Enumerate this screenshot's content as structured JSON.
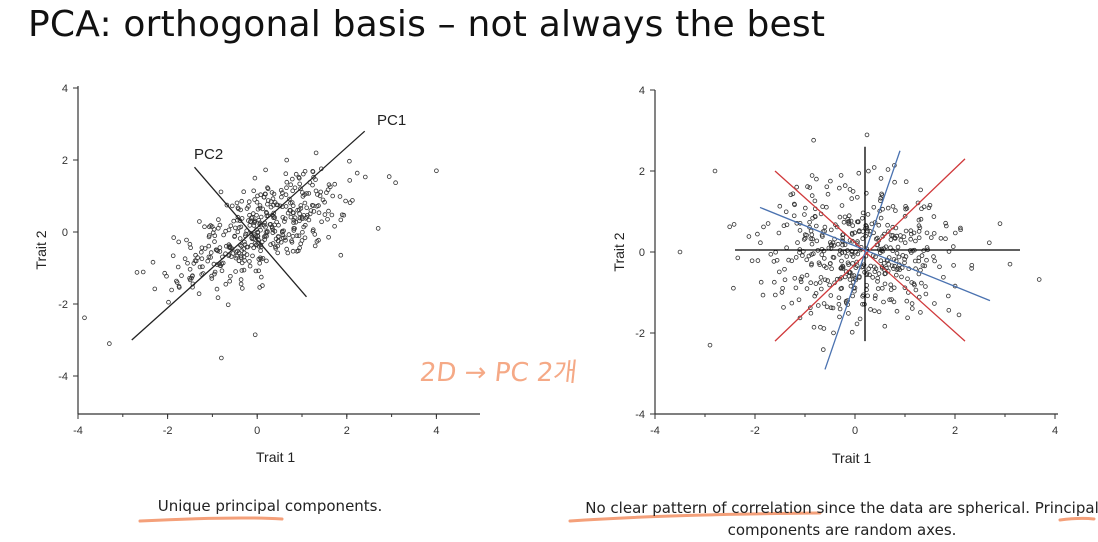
{
  "title": "PCA: orthogonal basis – not always the best",
  "handwritten_note": "2D → PC 2개",
  "captions": {
    "left": "Unique principal components.",
    "right": "No clear pattern of correlation since the data are spherical. Principal components are random axes."
  },
  "chart_data": [
    {
      "type": "scatter",
      "xlabel": "Trait 1",
      "ylabel": "Trait 2",
      "xlim": [
        -4,
        5
      ],
      "ylim": [
        -5,
        4
      ],
      "xticks": [
        -4,
        -2,
        0,
        2,
        4
      ],
      "yticks": [
        4,
        2,
        0,
        -2,
        -4
      ],
      "annotations": [
        {
          "label": "PC1",
          "from": [
            -2.8,
            -3.0
          ],
          "to": [
            2.4,
            2.8
          ]
        },
        {
          "label": "PC2",
          "from": [
            -1.4,
            1.8
          ],
          "to": [
            1.1,
            -1.8
          ]
        }
      ],
      "points": "correlated cloud, roughly 450 points along y ≈ 0.9x"
    },
    {
      "type": "scatter",
      "xlabel": "Trait 1",
      "ylabel": "Trait 2",
      "xlim": [
        -4,
        4
      ],
      "ylim": [
        -4,
        4
      ],
      "xticks": [
        -4,
        -2,
        0,
        2,
        4
      ],
      "yticks": [
        4,
        2,
        0,
        -2,
        -4
      ],
      "axes_lines": [
        {
          "color": "#000000",
          "from": [
            -2.4,
            0.05
          ],
          "to": [
            3.3,
            0.05
          ]
        },
        {
          "color": "#000000",
          "from": [
            0.2,
            -2.2
          ],
          "to": [
            0.2,
            2.6
          ]
        },
        {
          "color": "#d0393b",
          "from": [
            -1.6,
            -2.2
          ],
          "to": [
            2.2,
            2.3
          ]
        },
        {
          "color": "#d0393b",
          "from": [
            -1.6,
            2.0
          ],
          "to": [
            2.2,
            -2.2
          ]
        },
        {
          "color": "#4a72b0",
          "from": [
            -0.6,
            -2.9
          ],
          "to": [
            0.9,
            2.5
          ]
        },
        {
          "color": "#4a72b0",
          "from": [
            -1.9,
            1.1
          ],
          "to": [
            2.7,
            -1.2
          ]
        }
      ],
      "points": "spherical cloud, roughly 500 points"
    }
  ]
}
